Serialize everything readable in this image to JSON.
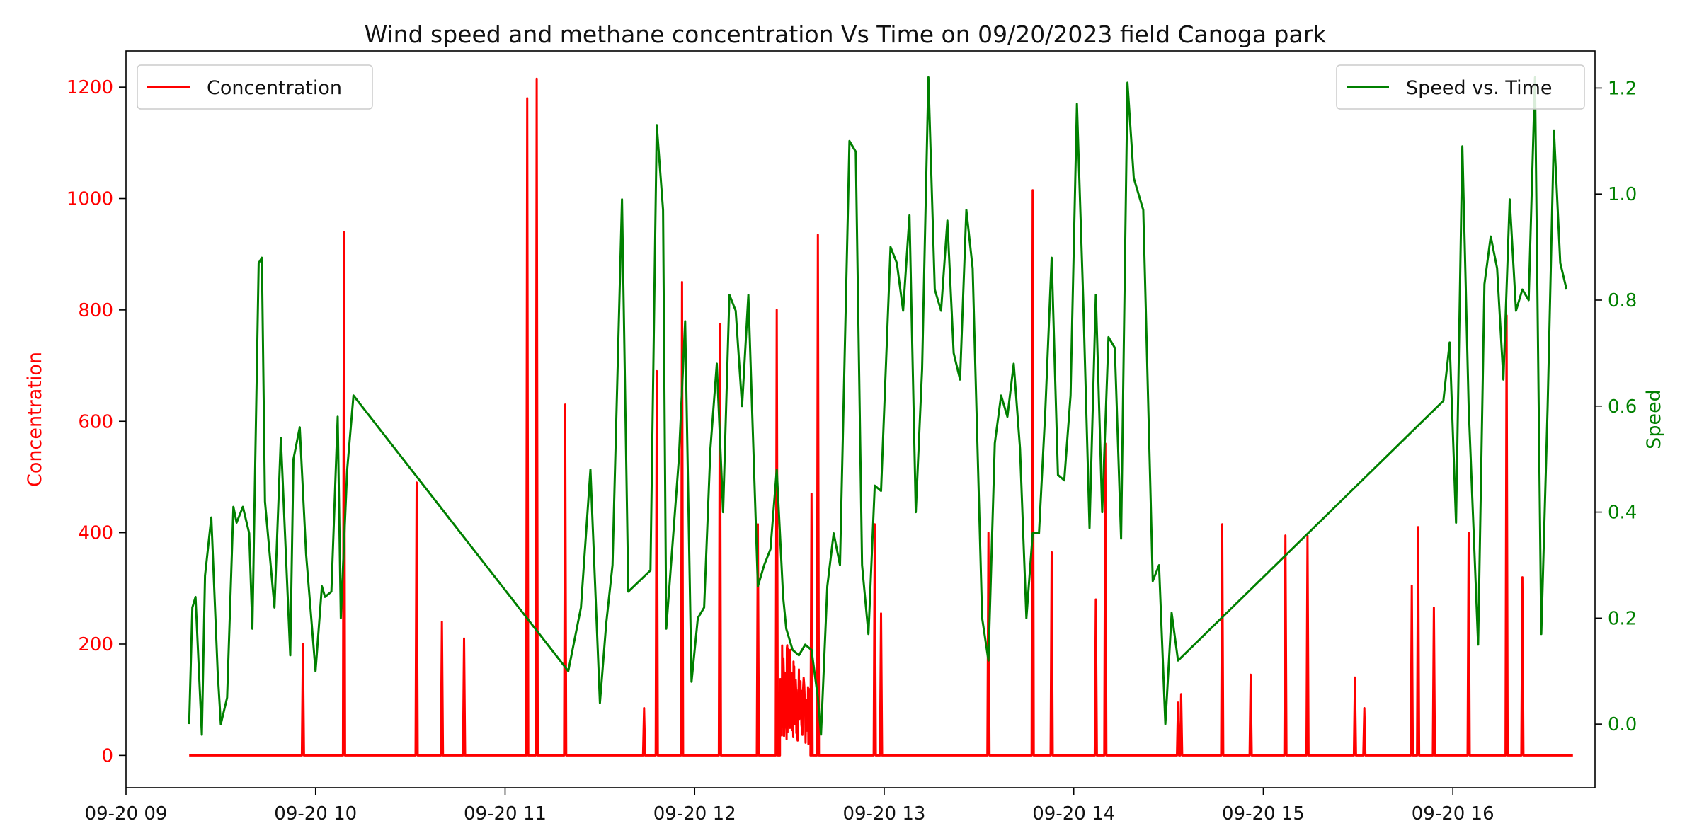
{
  "chart_data": {
    "type": "line",
    "title": "Wind speed and methane concentration Vs Time on 09/20/2023 field Canoga park",
    "x_axis": {
      "type": "time",
      "range": [
        "09:00",
        "16:45"
      ],
      "ticks": [
        {
          "t": "09:00",
          "label": "09-20 09"
        },
        {
          "t": "10:00",
          "label": "09-20 10"
        },
        {
          "t": "11:00",
          "label": "09-20 11"
        },
        {
          "t": "12:00",
          "label": "09-20 12"
        },
        {
          "t": "13:00",
          "label": "09-20 13"
        },
        {
          "t": "14:00",
          "label": "09-20 14"
        },
        {
          "t": "15:00",
          "label": "09-20 15"
        },
        {
          "t": "16:00",
          "label": "09-20 16"
        }
      ]
    },
    "y_left": {
      "label": "Concentration",
      "range": [
        -58,
        1265
      ],
      "ticks": [
        0,
        200,
        400,
        600,
        800,
        1000,
        1200
      ],
      "color": "#ff0000"
    },
    "y_right": {
      "label": "Speed",
      "range": [
        -0.12,
        1.27
      ],
      "ticks": [
        "0.0",
        "0.2",
        "0.4",
        "0.6",
        "0.8",
        "1.0",
        "1.2"
      ],
      "color": "#008000"
    },
    "legends": [
      {
        "label": "Concentration",
        "color": "#ff0000",
        "placement": "upper-left"
      },
      {
        "label": "Speed vs. Time",
        "color": "#008000",
        "placement": "upper-right"
      }
    ],
    "series": [
      {
        "name": "Concentration",
        "axis": "left",
        "color": "#ff0000",
        "baseline": 0,
        "start": "09:20",
        "end": "16:38",
        "spikes": [
          [
            "09:56",
            200
          ],
          [
            "10:09",
            940
          ],
          [
            "10:32",
            490
          ],
          [
            "10:40",
            240
          ],
          [
            "10:47",
            210
          ],
          [
            "11:07",
            1180
          ],
          [
            "11:10",
            1215
          ],
          [
            "11:19",
            630
          ],
          [
            "11:44",
            85
          ],
          [
            "11:48",
            690
          ],
          [
            "11:56",
            850
          ],
          [
            "12:08",
            775
          ],
          [
            "12:20",
            415
          ],
          [
            "12:26",
            800
          ],
          [
            "12:37",
            470
          ],
          [
            "12:39",
            935
          ],
          [
            "12:57",
            415
          ],
          [
            "12:59",
            255
          ],
          [
            "13:33",
            400
          ],
          [
            "13:47",
            1015
          ],
          [
            "13:53",
            365
          ],
          [
            "14:07",
            280
          ],
          [
            "14:10",
            560
          ],
          [
            "14:33",
            95
          ],
          [
            "14:34",
            110
          ],
          [
            "14:47",
            415
          ],
          [
            "14:56",
            145
          ],
          [
            "15:07",
            395
          ],
          [
            "15:14",
            395
          ],
          [
            "15:29",
            140
          ],
          [
            "15:32",
            85
          ],
          [
            "15:47",
            305
          ],
          [
            "15:49",
            410
          ],
          [
            "15:54",
            265
          ],
          [
            "16:05",
            400
          ],
          [
            "16:17",
            790
          ],
          [
            "16:22",
            320
          ]
        ],
        "noise_segment": {
          "from": "12:27",
          "to": "12:37",
          "min": 20,
          "max": 230
        }
      },
      {
        "name": "Speed vs. Time",
        "axis": "right",
        "color": "#008000",
        "points": [
          [
            "09:20",
            0.0
          ],
          [
            "09:21",
            0.22
          ],
          [
            "09:22",
            0.24
          ],
          [
            "09:24",
            -0.02
          ],
          [
            "09:25",
            0.28
          ],
          [
            "09:27",
            0.39
          ],
          [
            "09:29",
            0.1
          ],
          [
            "09:30",
            0.0
          ],
          [
            "09:32",
            0.05
          ],
          [
            "09:34",
            0.41
          ],
          [
            "09:35",
            0.38
          ],
          [
            "09:37",
            0.41
          ],
          [
            "09:39",
            0.36
          ],
          [
            "09:40",
            0.18
          ],
          [
            "09:42",
            0.87
          ],
          [
            "09:43",
            0.88
          ],
          [
            "09:44",
            0.42
          ],
          [
            "09:47",
            0.22
          ],
          [
            "09:49",
            0.54
          ],
          [
            "09:52",
            0.13
          ],
          [
            "09:53",
            0.5
          ],
          [
            "09:55",
            0.56
          ],
          [
            "09:57",
            0.32
          ],
          [
            "10:00",
            0.1
          ],
          [
            "10:02",
            0.26
          ],
          [
            "10:03",
            0.24
          ],
          [
            "10:05",
            0.25
          ],
          [
            "10:07",
            0.58
          ],
          [
            "10:08",
            0.2
          ],
          [
            "10:10",
            0.48
          ],
          [
            "10:12",
            0.62
          ],
          [
            "11:20",
            0.1
          ],
          [
            "11:24",
            0.22
          ],
          [
            "11:27",
            0.48
          ],
          [
            "11:30",
            0.04
          ],
          [
            "11:32",
            0.19
          ],
          [
            "11:34",
            0.3
          ],
          [
            "11:37",
            0.99
          ],
          [
            "11:39",
            0.25
          ],
          [
            "11:46",
            0.29
          ],
          [
            "11:48",
            1.13
          ],
          [
            "11:50",
            0.97
          ],
          [
            "11:51",
            0.18
          ],
          [
            "11:53",
            0.34
          ],
          [
            "11:55",
            0.5
          ],
          [
            "11:57",
            0.76
          ],
          [
            "11:59",
            0.08
          ],
          [
            "12:01",
            0.2
          ],
          [
            "12:03",
            0.22
          ],
          [
            "12:05",
            0.52
          ],
          [
            "12:07",
            0.68
          ],
          [
            "12:09",
            0.4
          ],
          [
            "12:11",
            0.81
          ],
          [
            "12:13",
            0.78
          ],
          [
            "12:15",
            0.6
          ],
          [
            "12:17",
            0.81
          ],
          [
            "12:20",
            0.26
          ],
          [
            "12:22",
            0.3
          ],
          [
            "12:24",
            0.33
          ],
          [
            "12:26",
            0.48
          ],
          [
            "12:28",
            0.24
          ],
          [
            "12:29",
            0.18
          ],
          [
            "12:31",
            0.14
          ],
          [
            "12:33",
            0.13
          ],
          [
            "12:35",
            0.15
          ],
          [
            "12:37",
            0.14
          ],
          [
            "12:39",
            0.05
          ],
          [
            "12:40",
            -0.02
          ],
          [
            "12:42",
            0.26
          ],
          [
            "12:44",
            0.36
          ],
          [
            "12:46",
            0.3
          ],
          [
            "12:49",
            1.1
          ],
          [
            "12:51",
            1.08
          ],
          [
            "12:53",
            0.3
          ],
          [
            "12:55",
            0.17
          ],
          [
            "12:57",
            0.45
          ],
          [
            "12:59",
            0.44
          ],
          [
            "13:02",
            0.9
          ],
          [
            "13:04",
            0.87
          ],
          [
            "13:06",
            0.78
          ],
          [
            "13:08",
            0.96
          ],
          [
            "13:10",
            0.4
          ],
          [
            "13:12",
            0.67
          ],
          [
            "13:14",
            1.22
          ],
          [
            "13:16",
            0.82
          ],
          [
            "13:18",
            0.78
          ],
          [
            "13:20",
            0.95
          ],
          [
            "13:22",
            0.7
          ],
          [
            "13:24",
            0.65
          ],
          [
            "13:26",
            0.97
          ],
          [
            "13:28",
            0.86
          ],
          [
            "13:31",
            0.2
          ],
          [
            "13:33",
            0.12
          ],
          [
            "13:35",
            0.53
          ],
          [
            "13:37",
            0.62
          ],
          [
            "13:39",
            0.58
          ],
          [
            "13:41",
            0.68
          ],
          [
            "13:43",
            0.52
          ],
          [
            "13:45",
            0.2
          ],
          [
            "13:47",
            0.36
          ],
          [
            "13:49",
            0.36
          ],
          [
            "13:51",
            0.59
          ],
          [
            "13:53",
            0.88
          ],
          [
            "13:55",
            0.47
          ],
          [
            "13:57",
            0.46
          ],
          [
            "13:59",
            0.62
          ],
          [
            "14:01",
            1.17
          ],
          [
            "14:03",
            0.8
          ],
          [
            "14:05",
            0.37
          ],
          [
            "14:07",
            0.81
          ],
          [
            "14:09",
            0.4
          ],
          [
            "14:11",
            0.73
          ],
          [
            "14:13",
            0.71
          ],
          [
            "14:15",
            0.35
          ],
          [
            "14:17",
            1.21
          ],
          [
            "14:19",
            1.03
          ],
          [
            "14:22",
            0.97
          ],
          [
            "14:25",
            0.27
          ],
          [
            "14:27",
            0.3
          ],
          [
            "14:29",
            0.0
          ],
          [
            "14:31",
            0.21
          ],
          [
            "14:33",
            0.12
          ],
          [
            "15:57",
            0.61
          ],
          [
            "15:59",
            0.72
          ],
          [
            "16:01",
            0.38
          ],
          [
            "16:03",
            1.09
          ],
          [
            "16:05",
            0.6
          ],
          [
            "16:08",
            0.15
          ],
          [
            "16:10",
            0.83
          ],
          [
            "16:12",
            0.92
          ],
          [
            "16:14",
            0.86
          ],
          [
            "16:16",
            0.65
          ],
          [
            "16:18",
            0.99
          ],
          [
            "16:20",
            0.78
          ],
          [
            "16:22",
            0.82
          ],
          [
            "16:24",
            0.8
          ],
          [
            "16:26",
            1.22
          ],
          [
            "16:28",
            0.17
          ],
          [
            "16:30",
            0.6
          ],
          [
            "16:32",
            1.12
          ],
          [
            "16:34",
            0.87
          ],
          [
            "16:36",
            0.82
          ]
        ]
      }
    ]
  }
}
